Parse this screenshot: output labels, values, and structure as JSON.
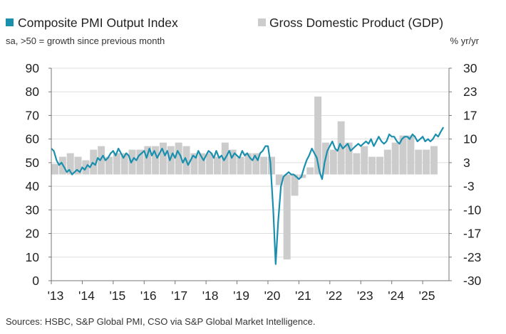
{
  "chart_data": {
    "type": "line",
    "legend": [
      {
        "name": "Composite PMI Output Index",
        "symbol": "line"
      },
      {
        "name": "Gross Domestic Product (GDP)",
        "symbol": "bar"
      }
    ],
    "left_axis_note": "sa, >50 = growth since previous month",
    "right_axis_note": "% yr/yr",
    "source": "Sources: HSBC, S&P Global PMI, CSO via S&P Global Market Intelligence.",
    "x_ticks": [
      "'13",
      "'14",
      "'15",
      "'16",
      "'17",
      "'18",
      "'19",
      "'20",
      "'21",
      "'22",
      "'23",
      "'24",
      "'25"
    ],
    "y_left": {
      "ticks": [
        "90",
        "80",
        "70",
        "60",
        "50",
        "40",
        "30",
        "20",
        "10",
        "0"
      ],
      "ylim": [
        0,
        90
      ]
    },
    "y_right": {
      "ticks": [
        "30",
        "23",
        "17",
        "10",
        "3",
        "-3",
        "-10",
        "-17",
        "-23",
        "-30"
      ],
      "ylim": [
        -30,
        30
      ]
    },
    "grid": "horizontal",
    "colors": {
      "pmi": "#1a8fae",
      "gdp": "#cccccc",
      "grid": "#dddddd"
    },
    "series": [
      {
        "name": "Composite PMI Output Index",
        "axis": "left",
        "x": [
          2013.0,
          2013.08,
          2013.17,
          2013.25,
          2013.33,
          2013.42,
          2013.5,
          2013.58,
          2013.67,
          2013.75,
          2013.83,
          2013.92,
          2014.0,
          2014.08,
          2014.17,
          2014.25,
          2014.33,
          2014.42,
          2014.5,
          2014.58,
          2014.67,
          2014.75,
          2014.83,
          2014.92,
          2015.0,
          2015.08,
          2015.17,
          2015.25,
          2015.33,
          2015.42,
          2015.5,
          2015.58,
          2015.67,
          2015.75,
          2015.83,
          2015.92,
          2016.0,
          2016.08,
          2016.17,
          2016.25,
          2016.33,
          2016.42,
          2016.5,
          2016.58,
          2016.67,
          2016.75,
          2016.83,
          2016.92,
          2017.0,
          2017.08,
          2017.17,
          2017.25,
          2017.33,
          2017.42,
          2017.5,
          2017.58,
          2017.67,
          2017.75,
          2017.83,
          2017.92,
          2018.0,
          2018.08,
          2018.17,
          2018.25,
          2018.33,
          2018.42,
          2018.5,
          2018.58,
          2018.67,
          2018.75,
          2018.83,
          2018.92,
          2019.0,
          2019.08,
          2019.17,
          2019.25,
          2019.33,
          2019.42,
          2019.5,
          2019.58,
          2019.67,
          2019.75,
          2019.83,
          2019.92,
          2020.0,
          2020.08,
          2020.17,
          2020.25,
          2020.33,
          2020.42,
          2020.5,
          2020.58,
          2020.67,
          2020.75,
          2020.83,
          2020.92,
          2021.0,
          2021.08,
          2021.17,
          2021.25,
          2021.33,
          2021.42,
          2021.5,
          2021.58,
          2021.67,
          2021.75,
          2021.83,
          2021.92,
          2022.0,
          2022.08,
          2022.17,
          2022.25,
          2022.33,
          2022.42,
          2022.5,
          2022.58,
          2022.67,
          2022.75,
          2022.83,
          2022.92,
          2023.0,
          2023.08,
          2023.17,
          2023.25,
          2023.33,
          2023.42,
          2023.5,
          2023.58,
          2023.67,
          2023.75,
          2023.83,
          2023.92,
          2024.0,
          2024.08,
          2024.17,
          2024.25,
          2024.33,
          2024.42,
          2024.5,
          2024.58,
          2024.67,
          2024.75,
          2024.83,
          2024.92,
          2025.0,
          2025.08,
          2025.17,
          2025.25,
          2025.33,
          2025.42,
          2025.5,
          2025.58,
          2025.67
        ],
        "values": [
          56,
          55,
          51,
          49,
          50,
          48,
          46,
          47,
          45,
          46,
          47,
          46,
          48,
          47,
          49,
          48,
          50,
          49,
          52,
          51,
          53,
          51,
          52,
          54,
          55,
          53,
          56,
          54,
          52,
          54,
          53,
          50,
          52,
          51,
          53,
          54,
          55,
          52,
          56,
          53,
          55,
          52,
          54,
          56,
          53,
          55,
          51,
          54,
          52,
          55,
          53,
          50,
          52,
          49,
          51,
          53,
          52,
          55,
          53,
          51,
          53,
          55,
          54,
          52,
          55,
          52,
          53,
          51,
          53,
          55,
          52,
          54,
          53,
          52,
          55,
          53,
          54,
          52,
          51,
          53,
          51,
          54,
          55,
          57,
          57,
          50,
          30,
          7,
          25,
          40,
          44,
          45,
          46,
          45,
          45,
          44,
          43,
          44,
          48,
          51,
          53,
          56,
          54,
          52,
          46,
          43,
          50,
          55,
          57,
          59,
          56,
          55,
          58,
          56,
          57,
          58,
          55,
          56,
          57,
          58,
          57,
          58,
          59,
          58,
          60,
          57,
          59,
          61,
          59,
          58,
          59,
          62,
          61,
          61,
          59,
          58,
          60,
          61,
          61,
          60,
          62,
          61,
          59,
          60,
          61,
          59,
          60,
          59,
          60,
          62,
          61,
          63,
          65
        ]
      },
      {
        "name": "Gross Domestic Product (GDP)",
        "axis": "right",
        "type": "bar",
        "x": [
          2013.0,
          2013.25,
          2013.5,
          2013.75,
          2014.0,
          2014.25,
          2014.5,
          2014.75,
          2015.0,
          2015.25,
          2015.5,
          2015.75,
          2016.0,
          2016.25,
          2016.5,
          2016.75,
          2017.0,
          2017.25,
          2017.5,
          2017.75,
          2018.0,
          2018.25,
          2018.5,
          2018.75,
          2019.0,
          2019.25,
          2019.5,
          2019.75,
          2020.0,
          2020.25,
          2020.5,
          2020.75,
          2021.0,
          2021.25,
          2021.5,
          2021.75,
          2022.0,
          2022.25,
          2022.5,
          2022.75,
          2023.0,
          2023.25,
          2023.5,
          2023.75,
          2024.0,
          2024.25,
          2024.5,
          2024.75,
          2025.0,
          2025.25
        ],
        "values": [
          3,
          5,
          6,
          5,
          4,
          7,
          8,
          5,
          6,
          6,
          7,
          7,
          8,
          8,
          9,
          8,
          9,
          8,
          6,
          6,
          6,
          5,
          9,
          7,
          5,
          6,
          6,
          5,
          5,
          -3,
          -24,
          -6,
          -1,
          2,
          22,
          9,
          7,
          15,
          9,
          6,
          8,
          5,
          5,
          7,
          9,
          11,
          11,
          7,
          7,
          8
        ]
      }
    ]
  }
}
